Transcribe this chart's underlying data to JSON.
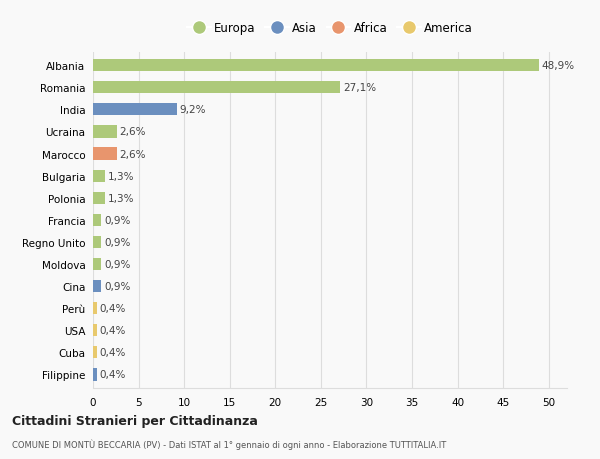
{
  "countries": [
    "Albania",
    "Romania",
    "India",
    "Ucraina",
    "Marocco",
    "Bulgaria",
    "Polonia",
    "Francia",
    "Regno Unito",
    "Moldova",
    "Cina",
    "Perù",
    "USA",
    "Cuba",
    "Filippine"
  ],
  "values": [
    48.9,
    27.1,
    9.2,
    2.6,
    2.6,
    1.3,
    1.3,
    0.9,
    0.9,
    0.9,
    0.9,
    0.4,
    0.4,
    0.4,
    0.4
  ],
  "continents": [
    "Europa",
    "Europa",
    "Asia",
    "Europa",
    "Africa",
    "Europa",
    "Europa",
    "Europa",
    "Europa",
    "Europa",
    "Asia",
    "America",
    "America",
    "America",
    "Asia"
  ],
  "colors": {
    "Europa": "#adc97a",
    "Asia": "#6b8fbf",
    "Africa": "#e8956d",
    "America": "#e8c96d"
  },
  "legend_order": [
    "Europa",
    "Asia",
    "Africa",
    "America"
  ],
  "title": "Cittadini Stranieri per Cittadinanza",
  "subtitle": "COMUNE DI MONTÙ BECCARIA (PV) - Dati ISTAT al 1° gennaio di ogni anno - Elaborazione TUTTITALIA.IT",
  "xlim": [
    0,
    52
  ],
  "xticks": [
    0,
    5,
    10,
    15,
    20,
    25,
    30,
    35,
    40,
    45,
    50
  ],
  "background_color": "#f9f9f9",
  "grid_color": "#dddddd"
}
